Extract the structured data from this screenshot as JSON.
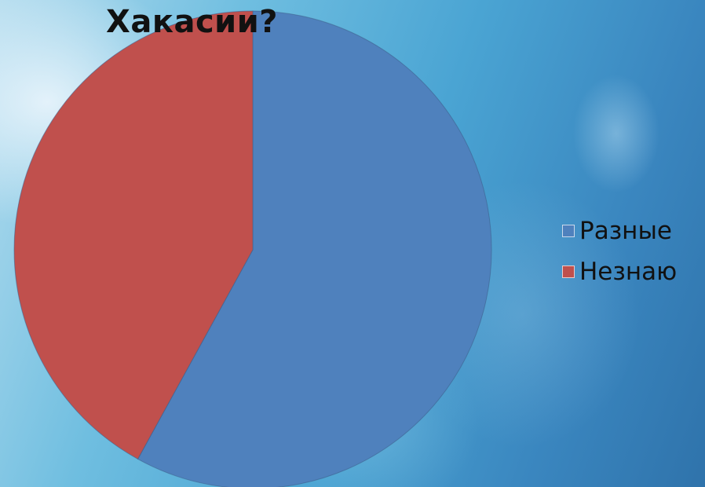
{
  "chart_data": {
    "type": "pie",
    "title": "Хакасии?",
    "categories": [
      "Разные",
      "Незнаю"
    ],
    "values": [
      58,
      42
    ],
    "colors": [
      "#4f81bd",
      "#c0504d"
    ],
    "legend_position": "right"
  },
  "legend": {
    "items": [
      {
        "label": "Разные",
        "color": "#4f81bd"
      },
      {
        "label": "Незнаю",
        "color": "#c0504d"
      }
    ]
  }
}
